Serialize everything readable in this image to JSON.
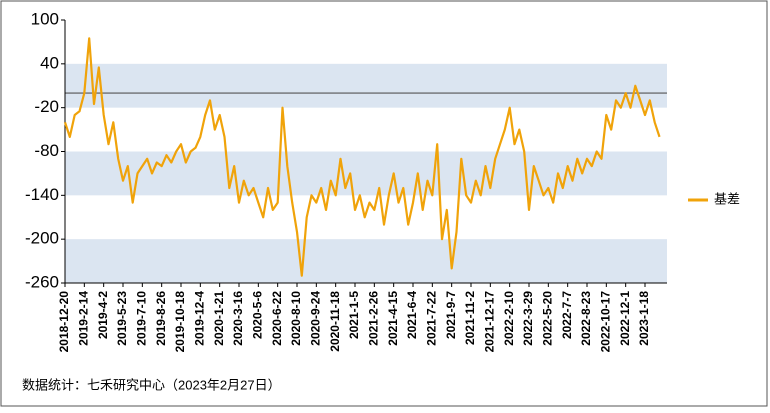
{
  "chart_data": {
    "type": "line",
    "categories": [
      "2018-12-20",
      null,
      null,
      null,
      "2019-2-14",
      null,
      null,
      null,
      "2019-4-2",
      null,
      null,
      null,
      "2019-5-23",
      null,
      null,
      null,
      "2019-7-10",
      null,
      null,
      null,
      "2019-8-26",
      null,
      null,
      null,
      "2019-10-18",
      null,
      null,
      null,
      "2019-12-4",
      null,
      null,
      null,
      "2020-1-21",
      null,
      null,
      null,
      "2020-3-16",
      null,
      null,
      null,
      "2020-5-6",
      null,
      null,
      null,
      "2020-6-22",
      null,
      null,
      null,
      "2020-8-10",
      null,
      null,
      null,
      "2020-9-24",
      null,
      null,
      null,
      "2020-11-18",
      null,
      null,
      null,
      "2021-1-5",
      null,
      null,
      null,
      "2021-2-26",
      null,
      null,
      null,
      "2021-4-15",
      null,
      null,
      null,
      "2021-6-4",
      null,
      null,
      null,
      "2021-7-22",
      null,
      null,
      null,
      "2021-9-7",
      null,
      null,
      null,
      "2021-11-2",
      null,
      null,
      null,
      "2021-12-17",
      null,
      null,
      null,
      "2022-2-10",
      null,
      null,
      null,
      "2022-3-29",
      null,
      null,
      null,
      "2022-5-20",
      null,
      null,
      null,
      "2022-7-7",
      null,
      null,
      null,
      "2022-8-23",
      null,
      null,
      null,
      "2022-10-17",
      null,
      null,
      null,
      "2022-12-1",
      null,
      null,
      null,
      "2023-1-18",
      null,
      null,
      null
    ],
    "series": [
      {
        "name": "基差",
        "color": "#f0a30a",
        "values": [
          -40,
          -60,
          -30,
          -25,
          0,
          75,
          -15,
          35,
          -30,
          -70,
          -40,
          -90,
          -120,
          -100,
          -150,
          -110,
          -100,
          -90,
          -110,
          -95,
          -100,
          -85,
          -95,
          -80,
          -70,
          -95,
          -80,
          -75,
          -60,
          -30,
          -10,
          -50,
          -30,
          -60,
          -130,
          -100,
          -150,
          -120,
          -140,
          -130,
          -150,
          -170,
          -130,
          -160,
          -150,
          -20,
          -100,
          -150,
          -190,
          -250,
          -170,
          -140,
          -150,
          -130,
          -160,
          -120,
          -140,
          -90,
          -130,
          -110,
          -160,
          -140,
          -170,
          -150,
          -160,
          -130,
          -180,
          -140,
          -110,
          -150,
          -130,
          -180,
          -150,
          -110,
          -160,
          -120,
          -140,
          -70,
          -200,
          -160,
          -240,
          -190,
          -90,
          -140,
          -150,
          -120,
          -140,
          -100,
          -130,
          -90,
          -70,
          -50,
          -20,
          -70,
          -50,
          -80,
          -160,
          -100,
          -120,
          -140,
          -130,
          -150,
          -110,
          -130,
          -100,
          -120,
          -90,
          -110,
          -90,
          -100,
          -80,
          -90,
          -30,
          -50,
          -10,
          -20,
          0,
          -20,
          10,
          -10,
          -30,
          -10,
          -40,
          -60
        ]
      }
    ],
    "ylim": [
      -260,
      100
    ],
    "yticks": [
      -260,
      -200,
      -140,
      -80,
      -20,
      40,
      100
    ],
    "band_color": "#dbe5f1",
    "reference_line": 0,
    "legend": "right",
    "footer": "数据统计：七禾研究中心（2023年2月27日）"
  }
}
